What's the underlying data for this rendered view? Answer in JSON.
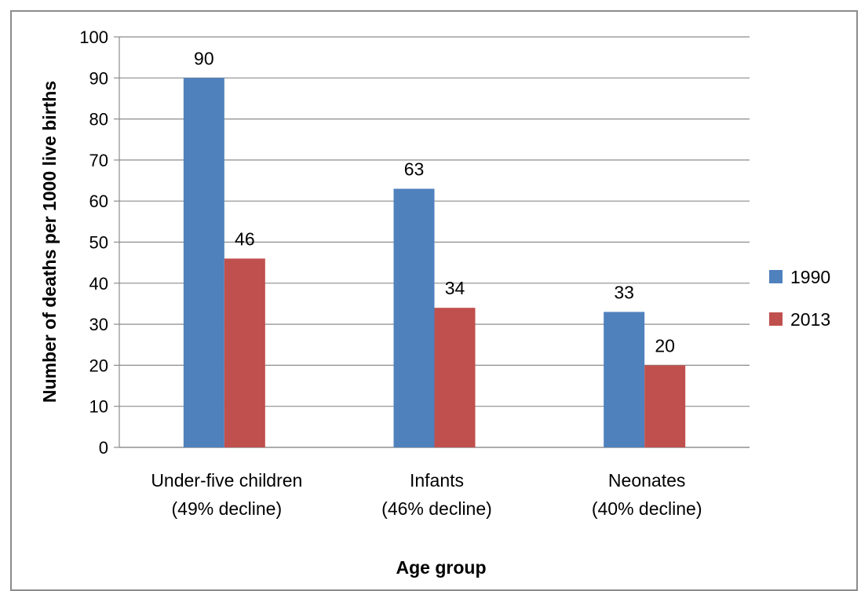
{
  "chart_data": {
    "type": "bar",
    "categories": [
      [
        "Under-five children",
        "(49% decline)"
      ],
      [
        "Infants",
        "(46% decline)"
      ],
      [
        "Neonates",
        "(40% decline)"
      ]
    ],
    "series": [
      {
        "name": "1990",
        "values": [
          90,
          63,
          33
        ],
        "color": "#4f81bd"
      },
      {
        "name": "2013",
        "values": [
          46,
          34,
          20
        ],
        "color": "#c0504d"
      }
    ],
    "data_labels": true,
    "xlabel": "Age group",
    "ylabel": "Number of deaths per 1000 live births",
    "ylim": [
      0,
      100
    ],
    "yticks": [
      0,
      10,
      20,
      30,
      40,
      50,
      60,
      70,
      80,
      90,
      100
    ],
    "grid": true,
    "legend_position": "right"
  }
}
